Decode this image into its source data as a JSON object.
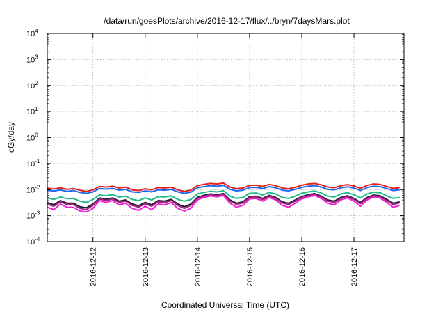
{
  "chart_data": {
    "type": "line",
    "title": "/data/run/goesPlots/archive/2016-12-17/flux/../bryn/7daysMars.plot",
    "xlabel": "Coordinated Universal Time (UTC)",
    "ylabel": "cGy/day",
    "yscale": "log",
    "ylim": [
      0.0001,
      10000
    ],
    "xlim": [
      "2016-12-11T03:00",
      "2016-12-17T23:00"
    ],
    "y_ticks": [
      {
        "base": "10",
        "exp": "-4"
      },
      {
        "base": "10",
        "exp": "-3"
      },
      {
        "base": "10",
        "exp": "-2"
      },
      {
        "base": "10",
        "exp": "-1"
      },
      {
        "base": "10",
        "exp": "0"
      },
      {
        "base": "10",
        "exp": "1"
      },
      {
        "base": "10",
        "exp": "2"
      },
      {
        "base": "10",
        "exp": "3"
      },
      {
        "base": "10",
        "exp": "4"
      }
    ],
    "x_ticks": [
      "2016-12-12",
      "2016-12-13",
      "2016-12-14",
      "2016-12-15",
      "2016-12-16",
      "2016-12-17"
    ],
    "grid": true,
    "legend": "none",
    "x": [
      "2016-12-11T03:00",
      "2016-12-11T06:00",
      "2016-12-11T09:00",
      "2016-12-11T12:00",
      "2016-12-11T15:00",
      "2016-12-11T18:00",
      "2016-12-11T21:00",
      "2016-12-12T00:00",
      "2016-12-12T03:00",
      "2016-12-12T06:00",
      "2016-12-12T09:00",
      "2016-12-12T12:00",
      "2016-12-12T15:00",
      "2016-12-12T18:00",
      "2016-12-12T21:00",
      "2016-12-13T00:00",
      "2016-12-13T03:00",
      "2016-12-13T06:00",
      "2016-12-13T09:00",
      "2016-12-13T12:00",
      "2016-12-13T15:00",
      "2016-12-13T18:00",
      "2016-12-13T21:00",
      "2016-12-14T00:00",
      "2016-12-14T03:00",
      "2016-12-14T06:00",
      "2016-12-14T09:00",
      "2016-12-14T12:00",
      "2016-12-14T15:00",
      "2016-12-14T18:00",
      "2016-12-14T21:00",
      "2016-12-15T00:00",
      "2016-12-15T03:00",
      "2016-12-15T06:00",
      "2016-12-15T09:00",
      "2016-12-15T12:00",
      "2016-12-15T15:00",
      "2016-12-15T18:00",
      "2016-12-15T21:00",
      "2016-12-16T00:00",
      "2016-12-16T03:00",
      "2016-12-16T06:00",
      "2016-12-16T09:00",
      "2016-12-16T12:00",
      "2016-12-16T15:00",
      "2016-12-16T18:00",
      "2016-12-16T21:00",
      "2016-12-17T00:00",
      "2016-12-17T03:00",
      "2016-12-17T06:00",
      "2016-12-17T09:00",
      "2016-12-17T12:00",
      "2016-12-17T15:00",
      "2016-12-17T18:00",
      "2016-12-17T21:00"
    ],
    "series": [
      {
        "color": "#e8201c",
        "values": [
          0.0115,
          0.0105,
          0.0118,
          0.0102,
          0.011,
          0.0095,
          0.0085,
          0.0098,
          0.0132,
          0.0126,
          0.0135,
          0.0115,
          0.0125,
          0.0098,
          0.0092,
          0.0108,
          0.0098,
          0.012,
          0.0115,
          0.0124,
          0.0098,
          0.0085,
          0.0095,
          0.0142,
          0.0158,
          0.0172,
          0.0165,
          0.0178,
          0.0125,
          0.0108,
          0.0115,
          0.0145,
          0.0148,
          0.0132,
          0.0158,
          0.0142,
          0.0115,
          0.0108,
          0.0122,
          0.0148,
          0.0165,
          0.0172,
          0.0152,
          0.0125,
          0.0118,
          0.0142,
          0.0155,
          0.0138,
          0.0112,
          0.0145,
          0.0165,
          0.0158,
          0.0132,
          0.0112,
          0.0118
        ]
      },
      {
        "color": "#1f68f0",
        "values": [
          0.0095,
          0.0088,
          0.0098,
          0.0085,
          0.0092,
          0.0078,
          0.0072,
          0.0082,
          0.011,
          0.0105,
          0.0112,
          0.0095,
          0.0102,
          0.0082,
          0.0078,
          0.009,
          0.0082,
          0.0098,
          0.0095,
          0.0102,
          0.0082,
          0.0072,
          0.008,
          0.0118,
          0.013,
          0.0142,
          0.0135,
          0.0145,
          0.0102,
          0.009,
          0.0095,
          0.012,
          0.0122,
          0.011,
          0.013,
          0.0118,
          0.0095,
          0.009,
          0.0102,
          0.0122,
          0.0135,
          0.0142,
          0.0125,
          0.0102,
          0.0098,
          0.0118,
          0.0128,
          0.0115,
          0.0092,
          0.012,
          0.0135,
          0.013,
          0.011,
          0.0092,
          0.0098
        ]
      },
      {
        "color": "#1dba8a",
        "values": [
          0.0048,
          0.0042,
          0.0052,
          0.0045,
          0.0046,
          0.0036,
          0.0032,
          0.0042,
          0.0062,
          0.0058,
          0.0064,
          0.0052,
          0.0056,
          0.0042,
          0.0038,
          0.0048,
          0.004,
          0.0054,
          0.0052,
          0.0058,
          0.0042,
          0.0036,
          0.0042,
          0.0068,
          0.0078,
          0.0086,
          0.0082,
          0.009,
          0.0056,
          0.0046,
          0.005,
          0.0072,
          0.0074,
          0.0062,
          0.0078,
          0.0068,
          0.005,
          0.0046,
          0.0056,
          0.0072,
          0.0082,
          0.0088,
          0.0074,
          0.0056,
          0.0052,
          0.0068,
          0.0076,
          0.0064,
          0.0048,
          0.0068,
          0.008,
          0.0076,
          0.0058,
          0.0046,
          0.005
        ]
      },
      {
        "color": "#1c1c36",
        "values": [
          0.0032,
          0.0026,
          0.0038,
          0.003,
          0.003,
          0.0022,
          0.002,
          0.0028,
          0.0048,
          0.0042,
          0.0048,
          0.0036,
          0.004,
          0.0028,
          0.0024,
          0.0032,
          0.0026,
          0.0038,
          0.0036,
          0.0042,
          0.0028,
          0.0022,
          0.0028,
          0.005,
          0.006,
          0.0068,
          0.0064,
          0.007,
          0.004,
          0.003,
          0.0034,
          0.0054,
          0.0056,
          0.0046,
          0.006,
          0.005,
          0.0034,
          0.003,
          0.004,
          0.0054,
          0.0064,
          0.007,
          0.0056,
          0.004,
          0.0036,
          0.005,
          0.0058,
          0.0046,
          0.0032,
          0.005,
          0.0062,
          0.0058,
          0.0042,
          0.003,
          0.0034
        ]
      },
      {
        "color": "#a0257a",
        "values": [
          0.0028,
          0.0023,
          0.0034,
          0.0027,
          0.0027,
          0.0019,
          0.0017,
          0.0025,
          0.0044,
          0.0038,
          0.0044,
          0.0032,
          0.0036,
          0.0025,
          0.0021,
          0.0029,
          0.0023,
          0.0034,
          0.0032,
          0.0038,
          0.0025,
          0.0019,
          0.0025,
          0.0046,
          0.0056,
          0.0063,
          0.0059,
          0.0065,
          0.0036,
          0.0027,
          0.0031,
          0.005,
          0.0052,
          0.0042,
          0.0056,
          0.0046,
          0.0031,
          0.0027,
          0.0036,
          0.005,
          0.0059,
          0.0065,
          0.0052,
          0.0036,
          0.0032,
          0.0046,
          0.0054,
          0.0042,
          0.0029,
          0.0046,
          0.0058,
          0.0054,
          0.0038,
          0.0027,
          0.0031
        ]
      },
      {
        "color": "#f020d8",
        "values": [
          0.0021,
          0.0017,
          0.0028,
          0.0021,
          0.0021,
          0.0015,
          0.0014,
          0.0019,
          0.0038,
          0.0032,
          0.0038,
          0.0026,
          0.003,
          0.0019,
          0.0016,
          0.0023,
          0.0017,
          0.0028,
          0.0026,
          0.0032,
          0.0019,
          0.0015,
          0.0019,
          0.004,
          0.005,
          0.0057,
          0.0053,
          0.0059,
          0.003,
          0.0021,
          0.0025,
          0.0044,
          0.0046,
          0.0036,
          0.005,
          0.004,
          0.0025,
          0.0021,
          0.003,
          0.0044,
          0.0053,
          0.0059,
          0.0046,
          0.003,
          0.0026,
          0.004,
          0.0048,
          0.0036,
          0.0023,
          0.004,
          0.0052,
          0.0048,
          0.0032,
          0.0021,
          0.0025
        ]
      }
    ]
  }
}
